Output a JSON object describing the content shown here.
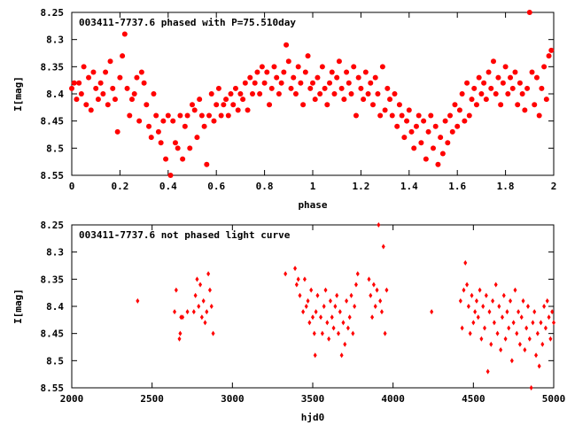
{
  "colors": {
    "points": "#ff0000",
    "axes": "#000000",
    "background": "#ffffff"
  },
  "chart_data": [
    {
      "type": "scatter",
      "title": "003411-7737.6 phased with P=75.510day",
      "xlabel": "phase",
      "ylabel": "I[mag]",
      "xlim": [
        0,
        2
      ],
      "ylim": [
        8.55,
        8.25
      ],
      "y_inverted": true,
      "xticks": [
        "0",
        "0.2",
        "0.4",
        "0.6",
        "0.8",
        "1",
        "1.2",
        "1.4",
        "1.6",
        "1.8",
        "2"
      ],
      "yticks": [
        "8.25",
        "8.3",
        "8.35",
        "8.4",
        "8.45",
        "8.5",
        "8.55"
      ],
      "marker": "filled-circle",
      "points": [
        [
          0.0,
          8.39
        ],
        [
          0.01,
          8.38
        ],
        [
          0.02,
          8.41
        ],
        [
          0.03,
          8.38
        ],
        [
          0.04,
          8.4
        ],
        [
          0.05,
          8.35
        ],
        [
          0.06,
          8.42
        ],
        [
          0.07,
          8.37
        ],
        [
          0.08,
          8.43
        ],
        [
          0.09,
          8.36
        ],
        [
          0.1,
          8.39
        ],
        [
          0.11,
          8.41
        ],
        [
          0.12,
          8.38
        ],
        [
          0.13,
          8.4
        ],
        [
          0.14,
          8.36
        ],
        [
          0.15,
          8.42
        ],
        [
          0.16,
          8.34
        ],
        [
          0.17,
          8.39
        ],
        [
          0.18,
          8.41
        ],
        [
          0.19,
          8.47
        ],
        [
          0.2,
          8.37
        ],
        [
          0.21,
          8.33
        ],
        [
          0.22,
          8.29
        ],
        [
          0.23,
          8.39
        ],
        [
          0.24,
          8.44
        ],
        [
          0.25,
          8.41
        ],
        [
          0.26,
          8.4
        ],
        [
          0.27,
          8.37
        ],
        [
          0.28,
          8.45
        ],
        [
          0.29,
          8.36
        ],
        [
          0.3,
          8.38
        ],
        [
          0.31,
          8.42
        ],
        [
          0.32,
          8.46
        ],
        [
          0.33,
          8.48
        ],
        [
          0.34,
          8.4
        ],
        [
          0.35,
          8.44
        ],
        [
          0.36,
          8.47
        ],
        [
          0.37,
          8.49
        ],
        [
          0.38,
          8.45
        ],
        [
          0.39,
          8.52
        ],
        [
          0.4,
          8.44
        ],
        [
          0.41,
          8.55
        ],
        [
          0.42,
          8.45
        ],
        [
          0.43,
          8.49
        ],
        [
          0.44,
          8.5
        ],
        [
          0.45,
          8.44
        ],
        [
          0.46,
          8.52
        ],
        [
          0.47,
          8.46
        ],
        [
          0.48,
          8.44
        ],
        [
          0.49,
          8.5
        ],
        [
          0.5,
          8.42
        ],
        [
          0.51,
          8.43
        ],
        [
          0.52,
          8.48
        ],
        [
          0.53,
          8.41
        ],
        [
          0.54,
          8.44
        ],
        [
          0.55,
          8.46
        ],
        [
          0.56,
          8.53
        ],
        [
          0.57,
          8.44
        ],
        [
          0.58,
          8.4
        ],
        [
          0.59,
          8.45
        ],
        [
          0.6,
          8.42
        ],
        [
          0.61,
          8.39
        ],
        [
          0.62,
          8.44
        ],
        [
          0.63,
          8.42
        ],
        [
          0.64,
          8.41
        ],
        [
          0.65,
          8.44
        ],
        [
          0.66,
          8.4
        ],
        [
          0.67,
          8.42
        ],
        [
          0.68,
          8.39
        ],
        [
          0.69,
          8.43
        ],
        [
          0.7,
          8.4
        ],
        [
          0.71,
          8.41
        ],
        [
          0.72,
          8.38
        ],
        [
          0.73,
          8.43
        ],
        [
          0.74,
          8.37
        ],
        [
          0.75,
          8.4
        ],
        [
          0.76,
          8.38
        ],
        [
          0.77,
          8.36
        ],
        [
          0.78,
          8.4
        ],
        [
          0.79,
          8.35
        ],
        [
          0.8,
          8.38
        ],
        [
          0.81,
          8.36
        ],
        [
          0.82,
          8.42
        ],
        [
          0.83,
          8.39
        ],
        [
          0.84,
          8.35
        ],
        [
          0.85,
          8.37
        ],
        [
          0.86,
          8.4
        ],
        [
          0.87,
          8.38
        ],
        [
          0.88,
          8.36
        ],
        [
          0.89,
          8.31
        ],
        [
          0.9,
          8.34
        ],
        [
          0.91,
          8.39
        ],
        [
          0.92,
          8.37
        ],
        [
          0.93,
          8.4
        ],
        [
          0.94,
          8.35
        ],
        [
          0.95,
          8.38
        ],
        [
          0.96,
          8.42
        ],
        [
          0.97,
          8.36
        ],
        [
          0.98,
          8.33
        ],
        [
          0.99,
          8.39
        ],
        [
          1.0,
          8.38
        ],
        [
          1.01,
          8.41
        ],
        [
          1.02,
          8.37
        ],
        [
          1.03,
          8.4
        ],
        [
          1.04,
          8.35
        ],
        [
          1.05,
          8.39
        ],
        [
          1.06,
          8.42
        ],
        [
          1.07,
          8.38
        ],
        [
          1.08,
          8.36
        ],
        [
          1.09,
          8.4
        ],
        [
          1.1,
          8.37
        ],
        [
          1.11,
          8.34
        ],
        [
          1.12,
          8.39
        ],
        [
          1.13,
          8.41
        ],
        [
          1.14,
          8.36
        ],
        [
          1.15,
          8.38
        ],
        [
          1.16,
          8.4
        ],
        [
          1.17,
          8.35
        ],
        [
          1.18,
          8.44
        ],
        [
          1.19,
          8.37
        ],
        [
          1.2,
          8.39
        ],
        [
          1.21,
          8.41
        ],
        [
          1.22,
          8.36
        ],
        [
          1.23,
          8.4
        ],
        [
          1.24,
          8.38
        ],
        [
          1.25,
          8.42
        ],
        [
          1.26,
          8.37
        ],
        [
          1.27,
          8.4
        ],
        [
          1.28,
          8.44
        ],
        [
          1.29,
          8.35
        ],
        [
          1.3,
          8.43
        ],
        [
          1.31,
          8.39
        ],
        [
          1.32,
          8.41
        ],
        [
          1.33,
          8.44
        ],
        [
          1.34,
          8.4
        ],
        [
          1.35,
          8.46
        ],
        [
          1.36,
          8.42
        ],
        [
          1.37,
          8.44
        ],
        [
          1.38,
          8.48
        ],
        [
          1.39,
          8.45
        ],
        [
          1.4,
          8.43
        ],
        [
          1.41,
          8.47
        ],
        [
          1.42,
          8.5
        ],
        [
          1.43,
          8.46
        ],
        [
          1.44,
          8.44
        ],
        [
          1.45,
          8.49
        ],
        [
          1.46,
          8.45
        ],
        [
          1.47,
          8.52
        ],
        [
          1.48,
          8.47
        ],
        [
          1.49,
          8.44
        ],
        [
          1.5,
          8.5
        ],
        [
          1.51,
          8.46
        ],
        [
          1.52,
          8.53
        ],
        [
          1.53,
          8.48
        ],
        [
          1.54,
          8.51
        ],
        [
          1.55,
          8.45
        ],
        [
          1.56,
          8.49
        ],
        [
          1.57,
          8.44
        ],
        [
          1.58,
          8.47
        ],
        [
          1.59,
          8.42
        ],
        [
          1.6,
          8.46
        ],
        [
          1.61,
          8.43
        ],
        [
          1.62,
          8.4
        ],
        [
          1.63,
          8.45
        ],
        [
          1.64,
          8.38
        ],
        [
          1.65,
          8.44
        ],
        [
          1.66,
          8.41
        ],
        [
          1.67,
          8.39
        ],
        [
          1.68,
          8.42
        ],
        [
          1.69,
          8.37
        ],
        [
          1.7,
          8.4
        ],
        [
          1.71,
          8.38
        ],
        [
          1.72,
          8.41
        ],
        [
          1.73,
          8.36
        ],
        [
          1.74,
          8.39
        ],
        [
          1.75,
          8.34
        ],
        [
          1.76,
          8.4
        ],
        [
          1.77,
          8.37
        ],
        [
          1.78,
          8.42
        ],
        [
          1.79,
          8.38
        ],
        [
          1.8,
          8.35
        ],
        [
          1.81,
          8.4
        ],
        [
          1.82,
          8.37
        ],
        [
          1.83,
          8.39
        ],
        [
          1.84,
          8.36
        ],
        [
          1.85,
          8.42
        ],
        [
          1.86,
          8.38
        ],
        [
          1.87,
          8.4
        ],
        [
          1.88,
          8.43
        ],
        [
          1.89,
          8.39
        ],
        [
          1.9,
          8.25
        ],
        [
          1.91,
          8.36
        ],
        [
          1.92,
          8.42
        ],
        [
          1.93,
          8.37
        ],
        [
          1.94,
          8.44
        ],
        [
          1.95,
          8.39
        ],
        [
          1.96,
          8.35
        ],
        [
          1.97,
          8.41
        ],
        [
          1.98,
          8.33
        ],
        [
          1.99,
          8.32
        ]
      ]
    },
    {
      "type": "scatter",
      "title": "003411-7737.6 not phased light curve",
      "xlabel": "hjd0",
      "ylabel": "I[mag]",
      "xlim": [
        2000,
        5000
      ],
      "ylim": [
        8.55,
        8.25
      ],
      "y_inverted": true,
      "xticks": [
        "2000",
        "2500",
        "3000",
        "3500",
        "4000",
        "4500",
        "5000"
      ],
      "yticks": [
        "8.25",
        "8.3",
        "8.35",
        "8.4",
        "8.45",
        "8.5",
        "8.55"
      ],
      "marker": "diamond",
      "points": [
        [
          2410,
          8.39
        ],
        [
          2640,
          8.41
        ],
        [
          2650,
          8.37
        ],
        [
          2670,
          8.46
        ],
        [
          2675,
          8.45
        ],
        [
          2680,
          8.42
        ],
        [
          2690,
          8.42
        ],
        [
          2720,
          8.41
        ],
        [
          2760,
          8.41
        ],
        [
          2770,
          8.38
        ],
        [
          2780,
          8.35
        ],
        [
          2790,
          8.4
        ],
        [
          2800,
          8.36
        ],
        [
          2810,
          8.42
        ],
        [
          2820,
          8.39
        ],
        [
          2830,
          8.43
        ],
        [
          2840,
          8.41
        ],
        [
          2850,
          8.34
        ],
        [
          2860,
          8.37
        ],
        [
          2870,
          8.4
        ],
        [
          2880,
          8.45
        ],
        [
          3330,
          8.34
        ],
        [
          3390,
          8.33
        ],
        [
          3400,
          8.36
        ],
        [
          3410,
          8.35
        ],
        [
          3420,
          8.38
        ],
        [
          3440,
          8.41
        ],
        [
          3450,
          8.35
        ],
        [
          3460,
          8.4
        ],
        [
          3470,
          8.39
        ],
        [
          3480,
          8.43
        ],
        [
          3490,
          8.37
        ],
        [
          3500,
          8.42
        ],
        [
          3510,
          8.45
        ],
        [
          3515,
          8.49
        ],
        [
          3520,
          8.41
        ],
        [
          3530,
          8.38
        ],
        [
          3550,
          8.42
        ],
        [
          3560,
          8.45
        ],
        [
          3570,
          8.4
        ],
        [
          3580,
          8.37
        ],
        [
          3590,
          8.43
        ],
        [
          3600,
          8.46
        ],
        [
          3610,
          8.39
        ],
        [
          3620,
          8.42
        ],
        [
          3630,
          8.44
        ],
        [
          3640,
          8.4
        ],
        [
          3650,
          8.38
        ],
        [
          3660,
          8.45
        ],
        [
          3670,
          8.41
        ],
        [
          3680,
          8.49
        ],
        [
          3690,
          8.43
        ],
        [
          3700,
          8.47
        ],
        [
          3710,
          8.39
        ],
        [
          3720,
          8.44
        ],
        [
          3730,
          8.42
        ],
        [
          3740,
          8.38
        ],
        [
          3750,
          8.45
        ],
        [
          3760,
          8.4
        ],
        [
          3770,
          8.36
        ],
        [
          3780,
          8.34
        ],
        [
          3850,
          8.35
        ],
        [
          3860,
          8.38
        ],
        [
          3870,
          8.42
        ],
        [
          3880,
          8.36
        ],
        [
          3890,
          8.4
        ],
        [
          3900,
          8.37
        ],
        [
          3910,
          8.25
        ],
        [
          3920,
          8.39
        ],
        [
          3930,
          8.41
        ],
        [
          3940,
          8.29
        ],
        [
          3950,
          8.45
        ],
        [
          3960,
          8.37
        ],
        [
          4240,
          8.41
        ],
        [
          4420,
          8.39
        ],
        [
          4430,
          8.44
        ],
        [
          4440,
          8.37
        ],
        [
          4450,
          8.32
        ],
        [
          4460,
          8.36
        ],
        [
          4470,
          8.4
        ],
        [
          4480,
          8.45
        ],
        [
          4490,
          8.38
        ],
        [
          4500,
          8.43
        ],
        [
          4510,
          8.41
        ],
        [
          4520,
          8.39
        ],
        [
          4530,
          8.42
        ],
        [
          4540,
          8.37
        ],
        [
          4550,
          8.46
        ],
        [
          4560,
          8.4
        ],
        [
          4570,
          8.44
        ],
        [
          4580,
          8.38
        ],
        [
          4590,
          8.52
        ],
        [
          4600,
          8.41
        ],
        [
          4610,
          8.47
        ],
        [
          4620,
          8.39
        ],
        [
          4630,
          8.43
        ],
        [
          4640,
          8.36
        ],
        [
          4650,
          8.45
        ],
        [
          4660,
          8.4
        ],
        [
          4670,
          8.48
        ],
        [
          4680,
          8.42
        ],
        [
          4690,
          8.38
        ],
        [
          4700,
          8.46
        ],
        [
          4710,
          8.41
        ],
        [
          4720,
          8.44
        ],
        [
          4730,
          8.39
        ],
        [
          4740,
          8.5
        ],
        [
          4750,
          8.43
        ],
        [
          4760,
          8.37
        ],
        [
          4770,
          8.45
        ],
        [
          4780,
          8.41
        ],
        [
          4790,
          8.47
        ],
        [
          4800,
          8.42
        ],
        [
          4810,
          8.39
        ],
        [
          4820,
          8.48
        ],
        [
          4830,
          8.44
        ],
        [
          4840,
          8.4
        ],
        [
          4850,
          8.46
        ],
        [
          4860,
          8.55
        ],
        [
          4870,
          8.43
        ],
        [
          4880,
          8.41
        ],
        [
          4890,
          8.49
        ],
        [
          4900,
          8.45
        ],
        [
          4910,
          8.51
        ],
        [
          4920,
          8.43
        ],
        [
          4930,
          8.47
        ],
        [
          4940,
          8.4
        ],
        [
          4950,
          8.44
        ],
        [
          4960,
          8.39
        ],
        [
          4970,
          8.42
        ],
        [
          4980,
          8.46
        ],
        [
          4990,
          8.41
        ],
        [
          5000,
          8.43
        ]
      ]
    }
  ]
}
